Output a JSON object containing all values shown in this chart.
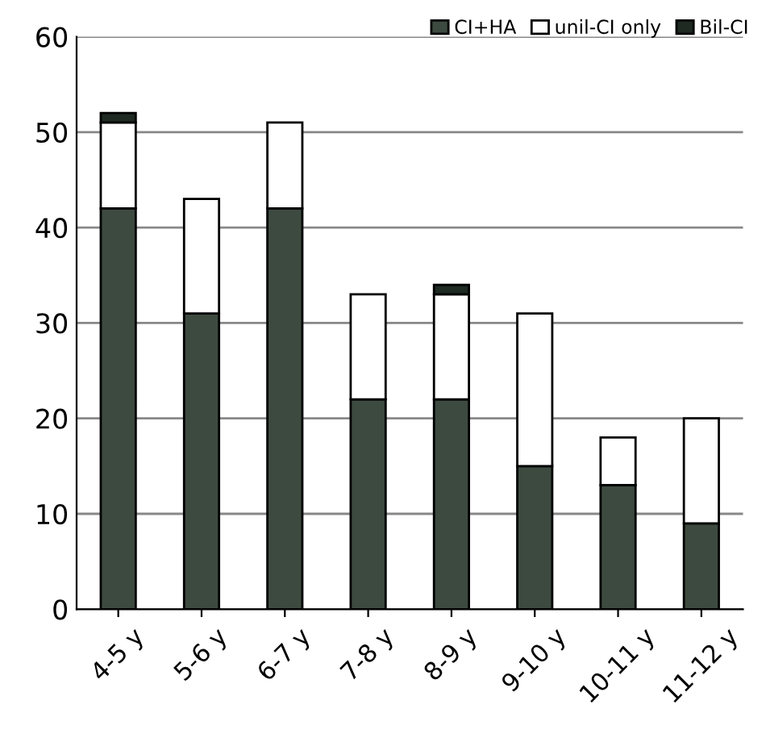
{
  "chart_data": {
    "type": "bar",
    "stacked": true,
    "categories": [
      "4-5 y",
      "5-6 y",
      "6-7 y",
      "7-8 y",
      "8-9 y",
      "9-10 y",
      "10-11 y",
      "11-12 y"
    ],
    "series": [
      {
        "name": "CI+HA",
        "color": "#3d4a40",
        "values": [
          42,
          31,
          42,
          22,
          22,
          15,
          13,
          9
        ]
      },
      {
        "name": "unil-CI only",
        "color": "#ffffff",
        "values": [
          9,
          12,
          9,
          11,
          11,
          16,
          5,
          11
        ]
      },
      {
        "name": "Bil-CI",
        "color": "#1e2a22",
        "values": [
          1,
          0,
          0,
          0,
          1,
          0,
          0,
          0
        ]
      }
    ],
    "ylim": [
      0,
      60
    ],
    "yticks": [
      0,
      10,
      20,
      30,
      40,
      50,
      60
    ],
    "grid": "y",
    "legend": "top right"
  }
}
